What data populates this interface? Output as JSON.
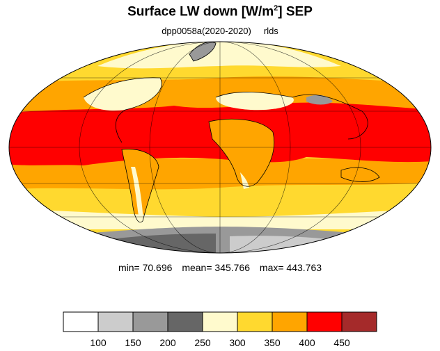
{
  "title": {
    "main": "Surface LW down [W/m",
    "sup": "2",
    "tail": "]  SEP"
  },
  "subtitle": {
    "run": "dpp0058a(2020-2020)",
    "variable": "rlds"
  },
  "stats": {
    "min_label": "min=",
    "min": "70.696",
    "mean_label": "mean=",
    "mean": "345.766",
    "max_label": "max=",
    "max": "443.763"
  },
  "colorbar": {
    "colors": [
      "#ffffff",
      "#cccccc",
      "#999999",
      "#666666",
      "#fffacd",
      "#ffd92f",
      "#ffa500",
      "#ff0000",
      "#a52a2a"
    ],
    "labels": [
      "100",
      "150",
      "200",
      "250",
      "300",
      "350",
      "400",
      "450"
    ]
  },
  "map_colors": {
    "ocean_band_25": "#ffd92f",
    "band_35": "#ffa500",
    "band_40": "#ff0000",
    "cold_30": "#fffacd",
    "ice_dark": "#666666",
    "ice_mid": "#999999",
    "ice_light": "#cccccc",
    "outline": "#000000"
  }
}
